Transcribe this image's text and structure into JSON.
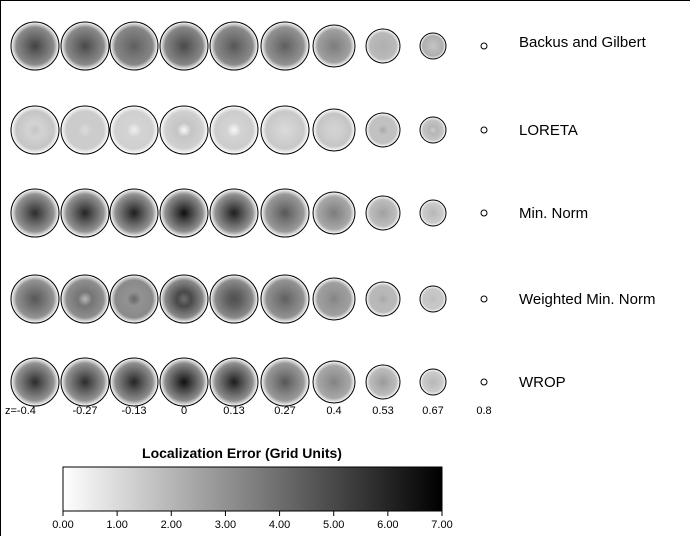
{
  "chart_data": {
    "type": "heatmap",
    "title": "",
    "z_labels": [
      "z=-0.4",
      "-0.27",
      "-0.13",
      "0",
      "0.13",
      "0.27",
      "0.4",
      "0.53",
      "0.67",
      "0.8"
    ],
    "z_values": [
      -0.4,
      -0.27,
      -0.13,
      0,
      0.13,
      0.27,
      0.4,
      0.53,
      0.67,
      0.8
    ],
    "methods": [
      {
        "name": "Backus and Gilbert",
        "center_error": [
          5.2,
          5.0,
          4.4,
          5.0,
          4.6,
          4.4,
          3.6,
          2.2,
          1.6,
          0
        ],
        "edge_error": [
          3.2,
          3.2,
          3.3,
          3.3,
          3.2,
          3.0,
          2.6,
          1.9,
          2.2,
          0
        ]
      },
      {
        "name": "LORETA",
        "center_error": [
          1.6,
          1.0,
          0.4,
          0.2,
          0.2,
          1.0,
          1.2,
          2.4,
          1.4,
          0
        ],
        "edge_error": [
          1.6,
          1.4,
          1.3,
          1.3,
          1.4,
          1.5,
          1.6,
          1.7,
          1.6,
          0
        ],
        "ring_error": [
          1.2,
          1.4,
          1.2,
          1.6,
          1.2,
          1.2,
          1.3,
          1.7,
          2.0,
          0
        ]
      },
      {
        "name": "Min. Norm",
        "center_error": [
          5.8,
          6.0,
          6.2,
          6.6,
          6.2,
          4.6,
          3.6,
          2.6,
          2.0,
          0
        ],
        "edge_error": [
          3.0,
          3.0,
          3.0,
          3.1,
          3.0,
          2.8,
          2.4,
          1.8,
          1.4,
          0
        ]
      },
      {
        "name": "Weighted Min. Norm",
        "center_error": [
          4.6,
          2.0,
          4.2,
          4.0,
          4.8,
          4.4,
          3.4,
          2.4,
          1.8,
          0
        ],
        "edge_error": [
          3.0,
          3.1,
          3.2,
          3.3,
          3.2,
          3.0,
          2.6,
          1.9,
          1.5,
          0
        ],
        "ring_error": [
          4.0,
          3.8,
          3.0,
          5.0,
          4.4,
          3.8,
          3.0,
          2.0,
          1.6,
          0
        ]
      },
      {
        "name": "WROP",
        "center_error": [
          5.8,
          5.8,
          6.0,
          6.6,
          6.2,
          4.6,
          3.4,
          2.8,
          2.0,
          0
        ],
        "edge_error": [
          3.0,
          3.0,
          3.1,
          3.2,
          3.1,
          2.8,
          2.4,
          1.8,
          1.4,
          0
        ]
      }
    ],
    "colorbar": {
      "title": "Localization Error (Grid Units)",
      "ticks": [
        "0.00",
        "1.00",
        "2.00",
        "3.00",
        "4.00",
        "5.00",
        "6.00",
        "7.00"
      ],
      "range": [
        0,
        7
      ],
      "colormap": "white-to-black"
    }
  }
}
